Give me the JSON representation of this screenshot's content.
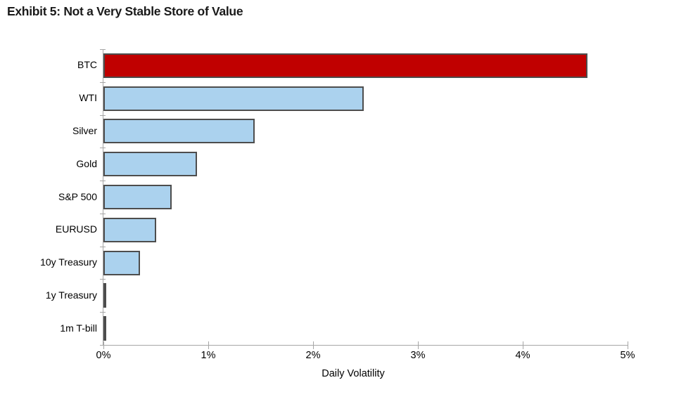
{
  "title": "Exhibit 5: Not a Very Stable Store of Value",
  "chart_data": {
    "type": "bar",
    "orientation": "horizontal",
    "title": "Exhibit 5: Not a Very Stable Store of Value",
    "categories": [
      "BTC",
      "WTI",
      "Silver",
      "Gold",
      "S&P 500",
      "EURUSD",
      "10y Treasury",
      "1y Treasury",
      "1m T-bill"
    ],
    "values": [
      4.62,
      2.48,
      1.44,
      0.89,
      0.65,
      0.5,
      0.35,
      0.03,
      0.01
    ],
    "unit": "%",
    "xlabel": "Daily Volatility",
    "ylabel": "",
    "xlim": [
      0,
      5
    ],
    "xtick_labels": [
      "0%",
      "1%",
      "2%",
      "3%",
      "4%",
      "5%"
    ],
    "grid": false,
    "legend": false,
    "highlight_category": "BTC",
    "colors": {
      "highlight_bar": "#c00000",
      "default_bar": "#abd2ee",
      "bar_border": "#4d4d4d",
      "axis_line": "#a6a6a6",
      "text": "#000000"
    }
  }
}
